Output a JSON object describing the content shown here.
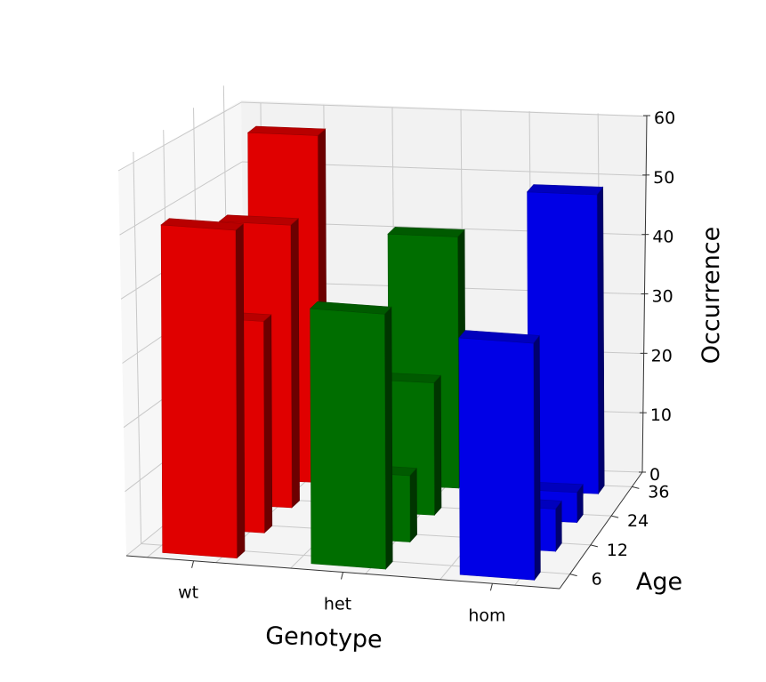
{
  "chart_data": {
    "type": "bar3d",
    "xlabel": "Genotype",
    "ylabel": "Age",
    "zlabel": "Occurrence",
    "categories": [
      "wt",
      "het",
      "hom"
    ],
    "age_ticks": [
      "6",
      "12",
      "24",
      "36"
    ],
    "z_ticks": [
      "0",
      "10",
      "20",
      "30",
      "40",
      "50",
      "60"
    ],
    "zlim": [
      0,
      60
    ],
    "grid": true,
    "series": [
      {
        "category": "wt",
        "color": "#e00000",
        "values": {
          "6": 54,
          "12": 35,
          "24": 47,
          "36": 58
        }
      },
      {
        "category": "het",
        "color": "#006e00",
        "values": {
          "6": 42,
          "12": 11,
          "24": 22,
          "36": 42
        }
      },
      {
        "category": "hom",
        "color": "#0000e6",
        "values": {
          "6": 39,
          "12": 7,
          "24": 5,
          "36": 50
        }
      }
    ]
  }
}
